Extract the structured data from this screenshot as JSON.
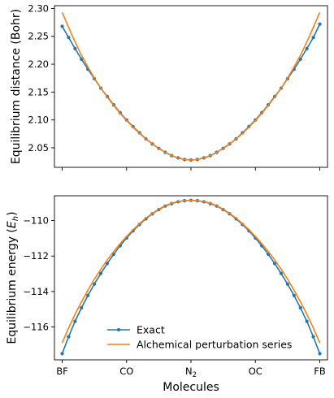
{
  "chart_data": [
    {
      "type": "line",
      "ylabel": "Equilibrium distance (Bohr)",
      "xlabel": "",
      "ylim": [
        2.015,
        2.305
      ],
      "yticks": [
        2.05,
        2.1,
        2.15,
        2.2,
        2.25,
        2.3
      ],
      "ytick_labels": [
        "2.05",
        "2.10",
        "2.15",
        "2.20",
        "2.25",
        "2.30"
      ],
      "xlim": [
        -0.12,
        4.12
      ],
      "x_ticks": [
        0,
        1,
        2,
        3,
        4
      ],
      "x_tick_labels": [],
      "grid": false,
      "series": [
        {
          "name": "Exact",
          "color": "#1f77b4",
          "marker": "circle",
          "x": [
            0,
            0.1,
            0.2,
            0.3,
            0.4,
            0.5,
            0.6,
            0.7,
            0.8,
            0.9,
            1.0,
            1.1,
            1.2,
            1.3,
            1.4,
            1.5,
            1.6,
            1.7,
            1.8,
            1.9,
            2.0,
            2.1,
            2.2,
            2.3,
            2.4,
            2.5,
            2.6,
            2.7,
            2.8,
            2.9,
            3.0,
            3.1,
            3.2,
            3.3,
            3.4,
            3.5,
            3.6,
            3.7,
            3.8,
            3.9,
            4.0
          ],
          "y": [
            2.268,
            2.248,
            2.228,
            2.209,
            2.191,
            2.174,
            2.157,
            2.142,
            2.127,
            2.113,
            2.1,
            2.088,
            2.077,
            2.066,
            2.057,
            2.049,
            2.042,
            2.036,
            2.032,
            2.029,
            2.028,
            2.029,
            2.032,
            2.036,
            2.042,
            2.049,
            2.057,
            2.066,
            2.077,
            2.088,
            2.1,
            2.113,
            2.127,
            2.142,
            2.157,
            2.174,
            2.191,
            2.209,
            2.228,
            2.248,
            2.272
          ]
        },
        {
          "name": "Alchemical perturbation series",
          "color": "#ff7f0e",
          "marker": "none",
          "x": [
            0,
            0.1,
            0.2,
            0.3,
            0.4,
            0.5,
            0.6,
            0.7,
            0.8,
            0.9,
            1.0,
            1.1,
            1.2,
            1.3,
            1.4,
            1.5,
            1.6,
            1.7,
            1.8,
            1.9,
            2.0,
            2.1,
            2.2,
            2.3,
            2.4,
            2.5,
            2.6,
            2.7,
            2.8,
            2.9,
            3.0,
            3.1,
            3.2,
            3.3,
            3.4,
            3.5,
            3.6,
            3.7,
            3.8,
            3.9,
            4.0
          ],
          "y": [
            2.293,
            2.266,
            2.24,
            2.216,
            2.195,
            2.175,
            2.157,
            2.141,
            2.126,
            2.112,
            2.099,
            2.087,
            2.076,
            2.066,
            2.057,
            2.049,
            2.042,
            2.036,
            2.032,
            2.029,
            2.028,
            2.029,
            2.032,
            2.036,
            2.042,
            2.049,
            2.057,
            2.066,
            2.076,
            2.087,
            2.099,
            2.112,
            2.126,
            2.141,
            2.157,
            2.175,
            2.195,
            2.216,
            2.24,
            2.266,
            2.293
          ]
        }
      ]
    },
    {
      "type": "line",
      "ylabel": "Equilibrium energy (E_h)",
      "ylabel_main": "Equilibrium energy (",
      "ylabel_italic": "E",
      "ylabel_sub": "h",
      "ylabel_close": ")",
      "xlabel": "Molecules",
      "ylim": [
        -117.85,
        -108.6
      ],
      "yticks": [
        -116,
        -114,
        -112,
        -110
      ],
      "ytick_labels": [
        "−116",
        "−114",
        "−112",
        "−110"
      ],
      "xlim": [
        -0.12,
        4.12
      ],
      "x_ticks": [
        0,
        1,
        2,
        3,
        4
      ],
      "x_tick_labels": [
        "BF",
        "CO",
        "N2",
        "OC",
        "FB"
      ],
      "x_tick_main": [
        "BF",
        "CO",
        "N",
        "OC",
        "FB"
      ],
      "x_tick_sub": [
        "",
        "",
        "2",
        "",
        ""
      ],
      "grid": false,
      "legend_position": "lower center",
      "series": [
        {
          "name": "Exact",
          "color": "#1f77b4",
          "marker": "circle",
          "x": [
            0,
            0.1,
            0.2,
            0.3,
            0.4,
            0.5,
            0.6,
            0.7,
            0.8,
            0.9,
            1.0,
            1.1,
            1.2,
            1.3,
            1.4,
            1.5,
            1.6,
            1.7,
            1.8,
            1.9,
            2.0,
            2.1,
            2.2,
            2.3,
            2.4,
            2.5,
            2.6,
            2.7,
            2.8,
            2.9,
            3.0,
            3.1,
            3.2,
            3.3,
            3.4,
            3.5,
            3.6,
            3.7,
            3.8,
            3.9,
            4.0
          ],
          "y": [
            -117.5,
            -116.55,
            -115.68,
            -114.92,
            -114.22,
            -113.58,
            -112.98,
            -112.42,
            -111.9,
            -111.42,
            -110.98,
            -110.58,
            -110.22,
            -109.9,
            -109.62,
            -109.38,
            -109.18,
            -109.04,
            -108.94,
            -108.88,
            -108.86,
            -108.88,
            -108.94,
            -109.04,
            -109.18,
            -109.38,
            -109.62,
            -109.9,
            -110.22,
            -110.58,
            -110.98,
            -111.42,
            -111.9,
            -112.42,
            -112.98,
            -113.58,
            -114.22,
            -114.92,
            -115.68,
            -116.55,
            -117.5
          ]
        },
        {
          "name": "Alchemical perturbation series",
          "color": "#ff7f0e",
          "marker": "none",
          "x": [
            0,
            0.1,
            0.2,
            0.3,
            0.4,
            0.5,
            0.6,
            0.7,
            0.8,
            0.9,
            1.0,
            1.1,
            1.2,
            1.3,
            1.4,
            1.5,
            1.6,
            1.7,
            1.8,
            1.9,
            2.0,
            2.1,
            2.2,
            2.3,
            2.4,
            2.5,
            2.6,
            2.7,
            2.8,
            2.9,
            3.0,
            3.1,
            3.2,
            3.3,
            3.4,
            3.5,
            3.6,
            3.7,
            3.8,
            3.9,
            4.0
          ],
          "y": [
            -116.9,
            -116.05,
            -115.28,
            -114.58,
            -113.92,
            -113.3,
            -112.74,
            -112.22,
            -111.74,
            -111.3,
            -110.9,
            -110.52,
            -110.18,
            -109.86,
            -109.6,
            -109.36,
            -109.16,
            -109.02,
            -108.93,
            -108.88,
            -108.86,
            -108.88,
            -108.93,
            -109.02,
            -109.16,
            -109.36,
            -109.6,
            -109.86,
            -110.18,
            -110.52,
            -110.9,
            -111.3,
            -111.74,
            -112.22,
            -112.74,
            -113.3,
            -113.92,
            -114.58,
            -115.28,
            -116.05,
            -116.9
          ]
        }
      ]
    }
  ]
}
